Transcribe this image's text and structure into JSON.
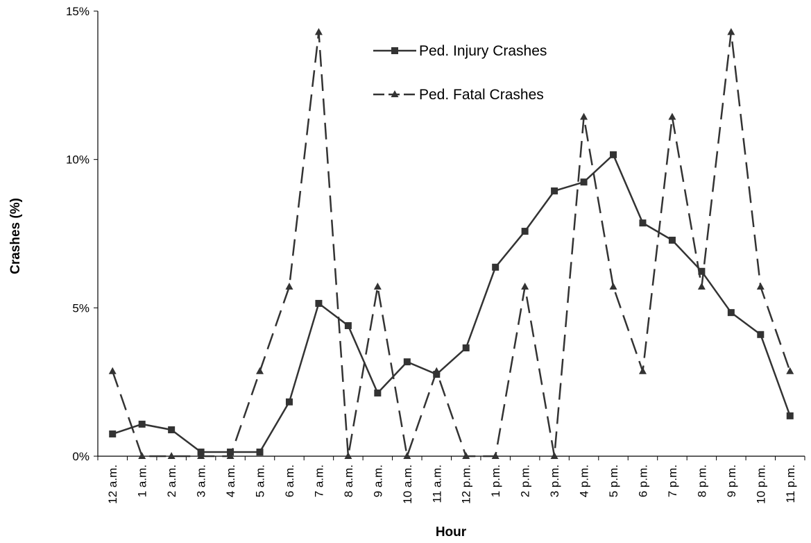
{
  "chart_data": {
    "type": "line",
    "xlabel": "Hour",
    "ylabel": "Crashes (%)",
    "categories": [
      "12 a.m.",
      "1 a.m.",
      "2 a.m.",
      "3 a.m.",
      "4 a.m.",
      "5 a.m.",
      "6 a.m.",
      "7 a.m.",
      "8 a.m.",
      "9 a.m.",
      "10 a.m.",
      "11 a.m.",
      "12 p.m.",
      "1 p.m.",
      "2 p.m.",
      "3 p.m.",
      "4 p.m.",
      "5 p.m.",
      "6 p.m.",
      "7 p.m.",
      "8 p.m.",
      "9 p.m.",
      "10 p.m.",
      "11 p.m."
    ],
    "series": [
      {
        "name": "Ped. Injury Crashes",
        "color": "#333333",
        "dash": "solid",
        "marker": "square",
        "values": [
          0.75,
          1.08,
          0.89,
          0.14,
          0.14,
          0.14,
          1.83,
          5.15,
          4.4,
          2.13,
          3.18,
          2.76,
          3.65,
          6.37,
          7.58,
          8.94,
          9.24,
          10.16,
          7.86,
          7.28,
          6.23,
          4.84,
          4.1,
          1.36
        ]
      },
      {
        "name": "Ped. Fatal Crashes",
        "color": "#333333",
        "dash": "dashed",
        "marker": "triangle",
        "values": [
          2.86,
          0,
          0,
          0,
          0,
          2.86,
          5.71,
          14.29,
          0,
          5.71,
          0,
          2.86,
          0,
          0,
          5.71,
          0,
          11.43,
          5.71,
          2.86,
          11.43,
          5.71,
          14.29,
          5.71,
          2.86
        ]
      }
    ],
    "ylim": [
      0,
      15
    ],
    "yticks": [
      {
        "value": 0,
        "label": "0%"
      },
      {
        "value": 5,
        "label": "5%"
      },
      {
        "value": 10,
        "label": "10%"
      },
      {
        "value": 15,
        "label": "15%"
      }
    ],
    "grid": false,
    "legend": "top"
  }
}
